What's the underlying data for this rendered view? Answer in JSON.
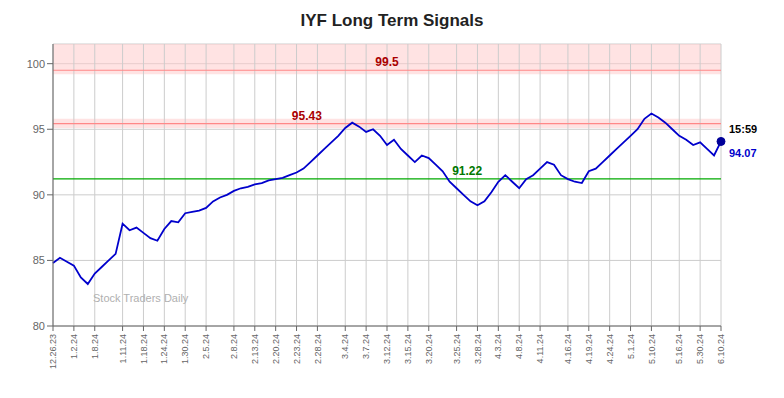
{
  "chart_data": {
    "type": "line",
    "title": "IYF Long Term Signals",
    "categories": [
      "12.26.23",
      null,
      null,
      "1.2.24",
      null,
      null,
      "1.8.24",
      null,
      null,
      null,
      "1.11.24",
      null,
      null,
      "1.18.24",
      null,
      null,
      "1.24.24",
      null,
      null,
      "1.30.24",
      null,
      null,
      "2.5.24",
      null,
      null,
      null,
      "2.8.24",
      null,
      null,
      "2.13.24",
      null,
      null,
      "2.20.24",
      null,
      null,
      "2.23.24",
      null,
      null,
      "2.28.24",
      null,
      null,
      null,
      "3.4.24",
      null,
      null,
      "3.7.24",
      null,
      null,
      "3.12.24",
      null,
      null,
      "3.15.24",
      null,
      null,
      "3.20.24",
      null,
      null,
      null,
      "3.25.24",
      null,
      null,
      "3.28.24",
      null,
      null,
      "4.3.24",
      null,
      null,
      "4.8.24",
      null,
      null,
      "4.11.24",
      null,
      null,
      null,
      "4.16.24",
      null,
      null,
      "4.19.24",
      null,
      null,
      "4.24.24",
      null,
      null,
      "5.1.24",
      null,
      null,
      "5.10.24",
      null,
      null,
      null,
      "5.16.24",
      null,
      null,
      "5.30.24",
      null,
      null,
      "6.10.24"
    ],
    "values": [
      84.8,
      85.2,
      84.9,
      84.6,
      83.7,
      83.2,
      84.0,
      84.5,
      85.0,
      85.5,
      87.8,
      87.3,
      87.5,
      87.1,
      86.7,
      86.5,
      87.4,
      88.0,
      87.9,
      88.6,
      88.7,
      88.8,
      89.0,
      89.5,
      89.8,
      90.0,
      90.3,
      90.5,
      90.6,
      90.8,
      90.9,
      91.1,
      91.2,
      91.3,
      91.5,
      91.7,
      92.0,
      92.5,
      93.0,
      93.5,
      94.0,
      94.5,
      95.1,
      95.5,
      95.2,
      94.8,
      95.0,
      94.5,
      93.8,
      94.2,
      93.5,
      93.0,
      92.5,
      93.0,
      92.8,
      92.3,
      91.8,
      91.0,
      90.5,
      90.0,
      89.5,
      89.2,
      89.5,
      90.2,
      91.0,
      91.5,
      91.0,
      90.5,
      91.2,
      91.5,
      92.0,
      92.5,
      92.3,
      91.5,
      91.2,
      91.0,
      90.9,
      91.8,
      92.0,
      92.5,
      93.0,
      93.5,
      94.0,
      94.5,
      95.0,
      95.8,
      96.2,
      95.9,
      95.5,
      95.0,
      94.5,
      94.2,
      93.8,
      94.0,
      93.5,
      93.0,
      94.07
    ],
    "color": "#0000cc",
    "ylim": [
      80,
      101.5
    ],
    "yticks": [
      80,
      85,
      90,
      95,
      100
    ],
    "grid": true,
    "bands": [
      {
        "y": [
          99.2,
          101.5
        ],
        "color": "#ffcccc"
      },
      {
        "y": [
          95.1,
          95.8
        ],
        "color": "#ffcccc"
      }
    ],
    "hlines": [
      {
        "y": 99.5,
        "label": "99.5",
        "color": "#ff8888",
        "label_color": "#aa0000"
      },
      {
        "y": 95.43,
        "label": "95.43",
        "color": "#ff8888",
        "label_color": "#aa0000"
      },
      {
        "y": 91.22,
        "label": "91.22",
        "color": "#00aa00",
        "label_color": "#007700"
      }
    ],
    "last_point": {
      "time_label": "15:59",
      "time_label_color": "#000000",
      "value_label": "94.07",
      "marker_color": "#000099"
    },
    "watermark": {
      "text": "Stock Traders Daily",
      "color": "#b0b0b0"
    }
  }
}
